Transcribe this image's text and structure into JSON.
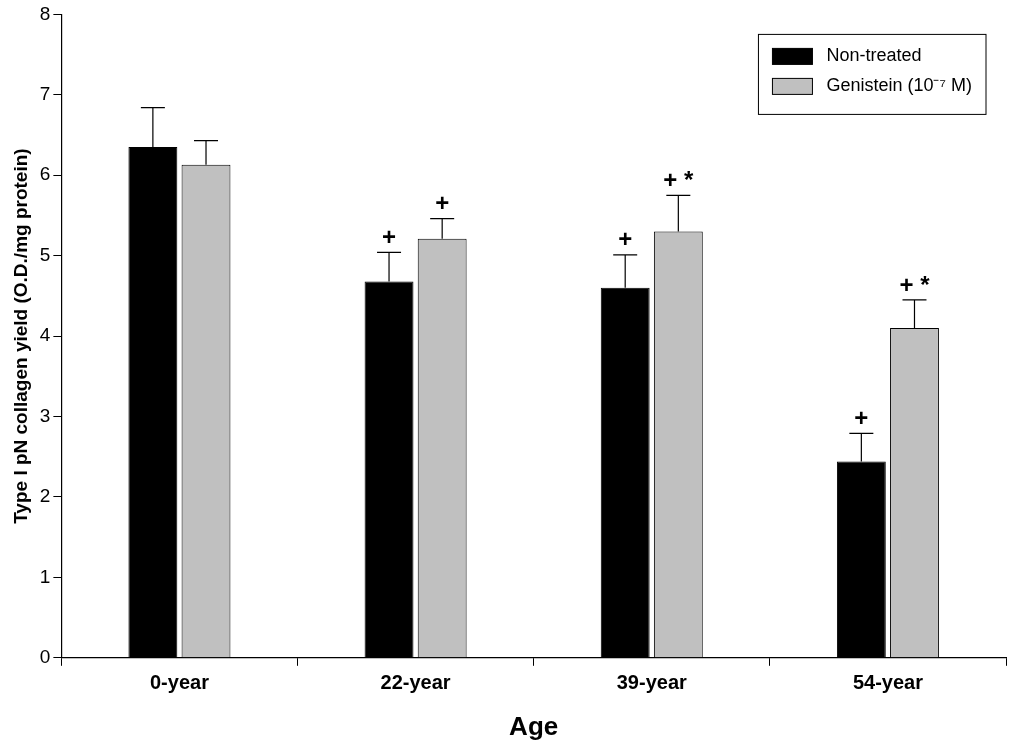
{
  "chart_data": {
    "type": "bar",
    "x_label": "Age",
    "y_label": "Type I pN collagen yield (O.D./mg protein)",
    "categories": [
      "0-year",
      "22-year",
      "39-year",
      "54-year"
    ],
    "series": [
      {
        "name": "Non-treated",
        "color": "#000000",
        "values": [
          6.35,
          4.68,
          4.6,
          2.44
        ],
        "errors": [
          0.49,
          0.36,
          0.41,
          0.35
        ],
        "annotations": [
          null,
          "+",
          "+",
          "+"
        ]
      },
      {
        "name": "Genistein (10⁻⁷ M)",
        "color": "#c0c0c0",
        "values": [
          6.13,
          5.21,
          5.3,
          4.1
        ],
        "errors": [
          0.3,
          0.25,
          0.45,
          0.35
        ],
        "annotations": [
          null,
          "+",
          "+ *",
          "+ *"
        ]
      }
    ],
    "ylim": [
      0,
      8
    ],
    "yticks": [
      0,
      1,
      2,
      3,
      4,
      5,
      6,
      7,
      8
    ],
    "grid": false,
    "legend": "upper right"
  }
}
